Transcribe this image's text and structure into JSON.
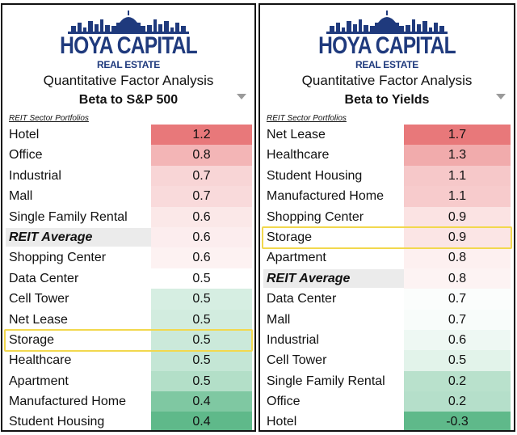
{
  "brand": {
    "name": "HOYA CAPITAL",
    "tagline": "REAL ESTATE",
    "navy": "#1f3a7d"
  },
  "highlight_color": "#f2d84e",
  "panels": [
    {
      "heading": "Quantitative Factor Analysis",
      "metric": "Beta to S&P 500",
      "caption": "REIT Sector Portfolios",
      "dropdown_icon": "triangle-down",
      "highlighted": "Storage",
      "rows": [
        {
          "name": "Hotel",
          "value": "1.2",
          "color": "#e8787a",
          "avg": false
        },
        {
          "name": "Office",
          "value": "0.8",
          "color": "#f3b5b6",
          "avg": false
        },
        {
          "name": "Industrial",
          "value": "0.7",
          "color": "#f8d5d6",
          "avg": false
        },
        {
          "name": "Mall",
          "value": "0.7",
          "color": "#f9dadb",
          "avg": false
        },
        {
          "name": "Single Family Rental",
          "value": "0.6",
          "color": "#fbe8e8",
          "avg": false
        },
        {
          "name": "REIT Average",
          "value": "0.6",
          "color": "#fcedee",
          "avg": true
        },
        {
          "name": "Shopping Center",
          "value": "0.6",
          "color": "#fdf2f2",
          "avg": false
        },
        {
          "name": "Data Center",
          "value": "0.5",
          "color": "#ffffff",
          "avg": false
        },
        {
          "name": "Cell Tower",
          "value": "0.5",
          "color": "#d6eee2",
          "avg": false
        },
        {
          "name": "Net Lease",
          "value": "0.5",
          "color": "#d2ecdf",
          "avg": false
        },
        {
          "name": "Storage",
          "value": "0.5",
          "color": "#cbe9da",
          "avg": false
        },
        {
          "name": "Healthcare",
          "value": "0.5",
          "color": "#c4e6d5",
          "avg": false
        },
        {
          "name": "Apartment",
          "value": "0.5",
          "color": "#b3dfc8",
          "avg": false
        },
        {
          "name": "Manufactured Home",
          "value": "0.4",
          "color": "#7fc8a2",
          "avg": false
        },
        {
          "name": "Student Housing",
          "value": "0.4",
          "color": "#5fb98a",
          "avg": false
        }
      ]
    },
    {
      "heading": "Quantitative Factor Analysis",
      "metric": "Beta to Yields",
      "caption": "REIT Sector Portfolios",
      "dropdown_icon": "triangle-down",
      "highlighted": "Storage",
      "rows": [
        {
          "name": "Net Lease",
          "value": "1.7",
          "color": "#e8787a",
          "avg": false
        },
        {
          "name": "Healthcare",
          "value": "1.3",
          "color": "#f1abac",
          "avg": false
        },
        {
          "name": "Student Housing",
          "value": "1.1",
          "color": "#f6c8c9",
          "avg": false
        },
        {
          "name": "Manufactured Home",
          "value": "1.1",
          "color": "#f7cbcc",
          "avg": false
        },
        {
          "name": "Shopping Center",
          "value": "0.9",
          "color": "#fbe3e3",
          "avg": false
        },
        {
          "name": "Storage",
          "value": "0.9",
          "color": "#fbe5e5",
          "avg": false
        },
        {
          "name": "Apartment",
          "value": "0.8",
          "color": "#fdf0f0",
          "avg": false
        },
        {
          "name": "REIT Average",
          "value": "0.8",
          "color": "#fdf3f3",
          "avg": true
        },
        {
          "name": "Data Center",
          "value": "0.7",
          "color": "#fbfdfc",
          "avg": false
        },
        {
          "name": "Mall",
          "value": "0.7",
          "color": "#f8fcfa",
          "avg": false
        },
        {
          "name": "Industrial",
          "value": "0.6",
          "color": "#eef8f3",
          "avg": false
        },
        {
          "name": "Cell Tower",
          "value": "0.5",
          "color": "#e2f3ea",
          "avg": false
        },
        {
          "name": "Single Family Rental",
          "value": "0.2",
          "color": "#b9e1cc",
          "avg": false
        },
        {
          "name": "Office",
          "value": "0.2",
          "color": "#b5dfca",
          "avg": false
        },
        {
          "name": "Hotel",
          "value": "-0.3",
          "color": "#5fb98a",
          "avg": false
        }
      ]
    }
  ]
}
